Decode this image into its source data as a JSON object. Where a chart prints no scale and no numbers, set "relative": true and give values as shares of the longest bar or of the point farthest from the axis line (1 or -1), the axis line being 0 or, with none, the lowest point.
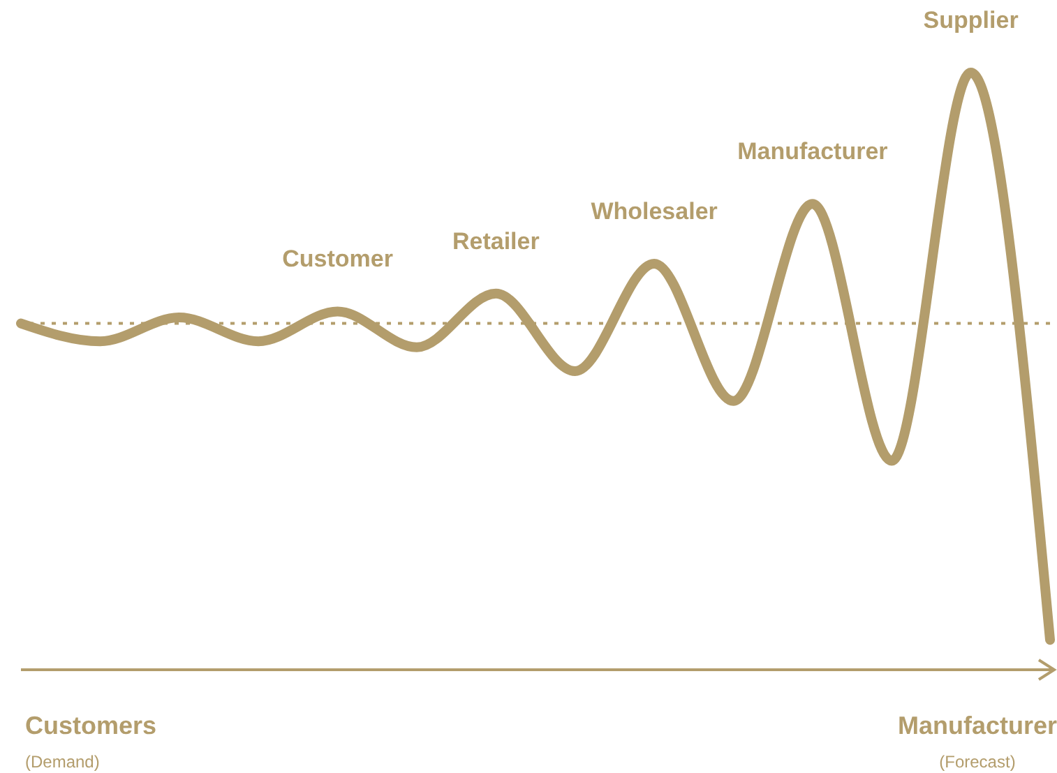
{
  "chart_data": {
    "type": "line",
    "relative": true,
    "categories": [
      null,
      null,
      null,
      null,
      null,
      null,
      null,
      null,
      null,
      null,
      null,
      null,
      null,
      null
    ],
    "series": [
      {
        "color": "#b39d6c",
        "values": [
          0.58,
          0.55,
          0.59,
          0.55,
          0.6,
          0.54,
          0.63,
          0.5,
          0.68,
          0.45,
          0.78,
          0.35,
          1,
          0.05
        ]
      }
    ],
    "ref_lines": [
      {
        "axis": "y",
        "value": 0.58,
        "line_style": "dotted",
        "color": "#b39d6c"
      }
    ],
    "annotations": [
      {
        "text": "Customer",
        "y": 0.6
      },
      {
        "text": "Retailer",
        "y": 0.63
      },
      {
        "text": "Wholesaler",
        "y": 0.68
      },
      {
        "text": "Manufacturer",
        "y": 0.78
      },
      {
        "text": "Supplier",
        "y": 1
      },
      "Customers",
      "(Demand)",
      "Manufacturer",
      "(Forecast)"
    ],
    "legend": false
  }
}
